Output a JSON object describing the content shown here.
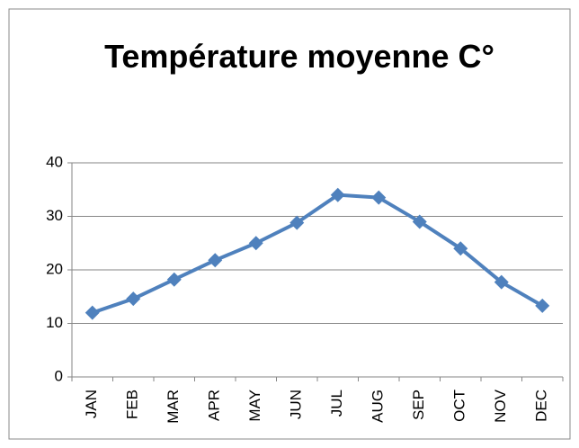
{
  "chart_data": {
    "type": "line",
    "title": "Température moyenne C°",
    "categories": [
      "JAN",
      "FEB",
      "MAR",
      "APR",
      "MAY",
      "JUN",
      "JUL",
      "AUG",
      "SEP",
      "OCT",
      "NOV",
      "DEC"
    ],
    "series": [
      {
        "color": "#4f81bd",
        "values": [
          12,
          14.6,
          18.2,
          21.8,
          25,
          28.8,
          34,
          33.5,
          29,
          24,
          17.7,
          13.3
        ]
      }
    ],
    "ylim": [
      0,
      40
    ],
    "yticks": [
      0,
      10,
      20,
      30,
      40
    ],
    "grid": true
  }
}
